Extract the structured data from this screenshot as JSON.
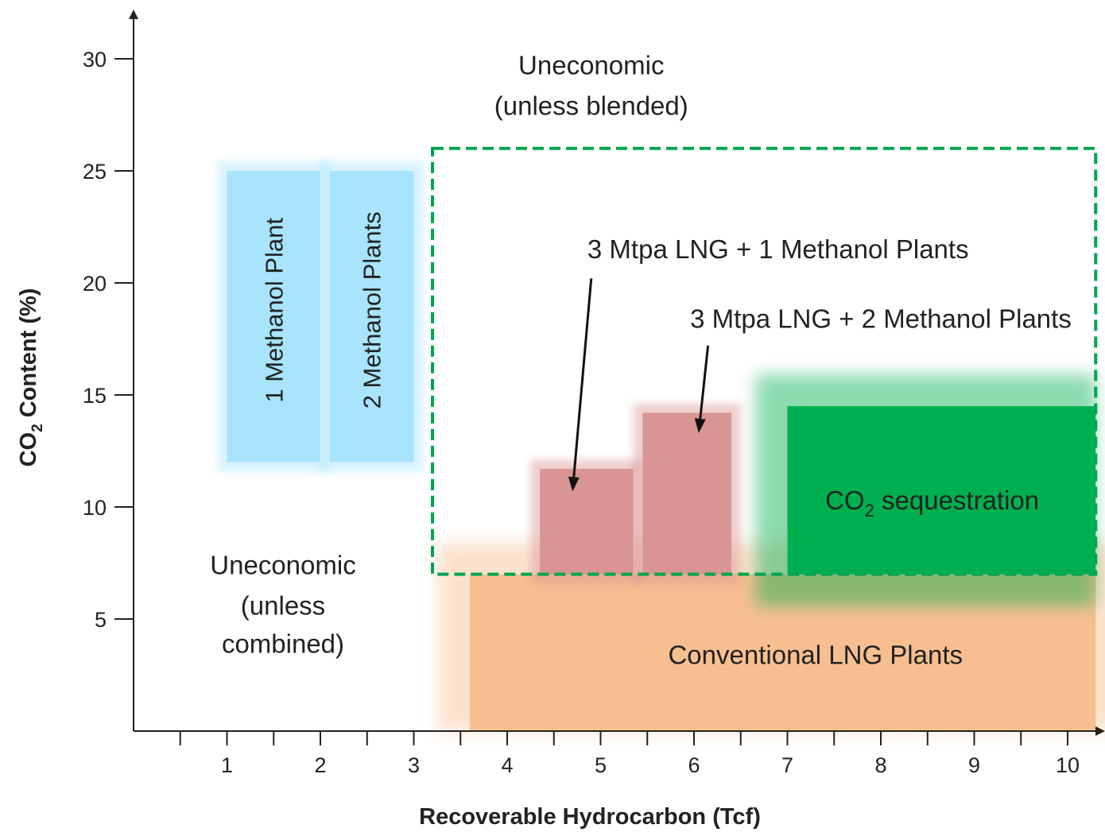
{
  "chart_data": {
    "type": "region-map",
    "xlabel": "Recoverable Hydrocarbon (Tcf)",
    "ylabel": {
      "prefix": "CO",
      "sub": "2",
      "suffix": " Content (%)"
    },
    "xlim": [
      0,
      10.5
    ],
    "ylim": [
      0,
      30.5
    ],
    "x_ticks": [
      1,
      2,
      3,
      4,
      5,
      6,
      7,
      8,
      9,
      10
    ],
    "x_minor_ticks": [
      0.5,
      1.5,
      2.5,
      3.5,
      4.5,
      5.5,
      6.5,
      7.5,
      8.5,
      9.5
    ],
    "y_ticks": [
      5,
      10,
      15,
      20,
      25,
      30
    ],
    "regions": [
      {
        "name": "1 Methanol Plant",
        "color": "#a8e4fb",
        "x": [
          1.0,
          2.0
        ],
        "y": [
          12.0,
          25.0
        ],
        "label_vertical": true
      },
      {
        "name": "2 Methanol Plants",
        "color": "#a8e4fb",
        "x": [
          2.1,
          3.0
        ],
        "y": [
          12.0,
          25.0
        ],
        "label_vertical": true
      },
      {
        "name": "Conventional LNG Plants",
        "color": "#f7bf90",
        "x": [
          3.6,
          10.3
        ],
        "y": [
          0.0,
          7.0
        ]
      },
      {
        "name": "CO2 sequestration",
        "color": "#00b050",
        "x": [
          7.0,
          10.3
        ],
        "y": [
          7.0,
          14.5
        ],
        "label": {
          "prefix": "CO",
          "sub": "2",
          "suffix": " sequestration"
        }
      },
      {
        "name": "3 Mtpa LNG + 1 Methanol Plants",
        "color": "#d99494",
        "x": [
          4.35,
          5.35
        ],
        "y": [
          7.0,
          11.7
        ]
      },
      {
        "name": "3 Mtpa LNG + 2 Methanol Plants",
        "color": "#d99494",
        "x": [
          5.45,
          6.4
        ],
        "y": [
          7.0,
          14.2
        ]
      }
    ],
    "dashed_box": {
      "color": "#00a550",
      "x": [
        3.2,
        10.3
      ],
      "y": [
        7.0,
        26.0
      ]
    },
    "annotations": [
      {
        "text": "Uneconomic",
        "x": 4.9,
        "y": 29.3
      },
      {
        "text": "(unless blended)",
        "x": 4.9,
        "y": 27.5
      },
      {
        "text": "Uneconomic",
        "x": 1.6,
        "y": 7.0
      },
      {
        "text": "(unless",
        "x": 1.6,
        "y": 5.2
      },
      {
        "text": "combined)",
        "x": 1.6,
        "y": 3.5
      },
      {
        "text": "3 Mtpa LNG + 1 Methanol Plants",
        "x": 6.9,
        "y": 21.1
      },
      {
        "text": "3 Mtpa LNG + 2 Methanol Plants",
        "x": 8.0,
        "y": 18.0
      }
    ],
    "arrows": [
      {
        "from": [
          4.9,
          20.2
        ],
        "to": [
          4.7,
          10.7
        ]
      },
      {
        "from": [
          6.15,
          17.2
        ],
        "to": [
          6.05,
          13.3
        ]
      }
    ]
  }
}
